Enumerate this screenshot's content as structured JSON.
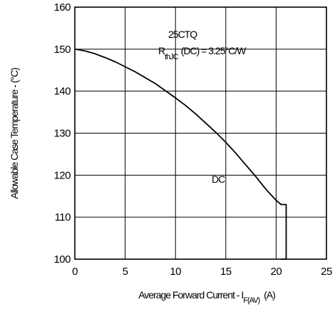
{
  "chart_data": {
    "type": "line",
    "xlabel": "Average Forward Current - I",
    "xlabel_sub": "F(AV)",
    "xlabel_unit": "(A)",
    "ylabel": "Allowable Case Temperature - (°C)",
    "xlim": [
      0,
      25
    ],
    "ylim": [
      100,
      160
    ],
    "x_ticks": [
      "0",
      "5",
      "10",
      "15",
      "20",
      "25"
    ],
    "y_ticks": [
      "100",
      "110",
      "120",
      "130",
      "140",
      "150",
      "160"
    ],
    "grid": true,
    "annotations": {
      "part": "25CTQ",
      "rth_prefix": "R",
      "rth_sub": "thJC",
      "rth_rest": "(DC) = 3.25°C/W",
      "curve_label": "DC"
    },
    "series": [
      {
        "name": "DC",
        "x": [
          0,
          1,
          2,
          3,
          4,
          5,
          6,
          7,
          8,
          9,
          10,
          11,
          12,
          13,
          14,
          15,
          16,
          17,
          18,
          19,
          20,
          20.5,
          21,
          21,
          20.5
        ],
        "y": [
          150,
          149.6,
          148.9,
          148.0,
          147.0,
          145.8,
          144.6,
          143.2,
          141.8,
          140.1,
          138.4,
          136.6,
          134.6,
          132.4,
          130.2,
          127.8,
          125.2,
          122.4,
          119.6,
          116.6,
          114.0,
          113.0,
          113.0,
          100,
          100
        ]
      }
    ]
  }
}
